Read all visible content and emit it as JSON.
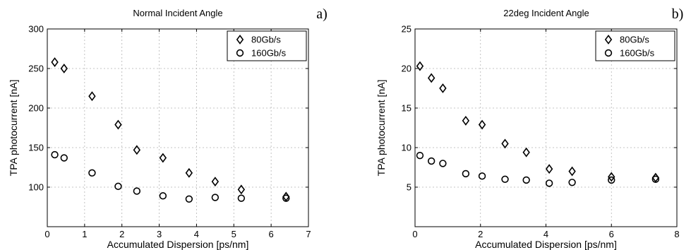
{
  "chart_data": [
    {
      "type": "scatter",
      "panel_label": "a)",
      "title": "Normal Incident Angle",
      "xlabel": "Accumulated Dispersion [ps/nm]",
      "ylabel": "TPA photocurrent [nA]",
      "xlim": [
        0,
        7
      ],
      "ylim": [
        50,
        300
      ],
      "xticks": [
        0,
        1,
        2,
        3,
        4,
        5,
        6,
        7
      ],
      "yticks": [
        100,
        150,
        200,
        250,
        300
      ],
      "grid": true,
      "legend_position": "top-right",
      "series": [
        {
          "name": "80Gb/s",
          "marker": "diamond",
          "x": [
            0.2,
            0.45,
            1.2,
            1.9,
            2.4,
            3.1,
            3.8,
            4.5,
            5.2,
            6.4
          ],
          "y": [
            258,
            250,
            215,
            179,
            147,
            137,
            118,
            107,
            97,
            88
          ]
        },
        {
          "name": "160Gb/s",
          "marker": "circle",
          "x": [
            0.2,
            0.45,
            1.2,
            1.9,
            2.4,
            3.1,
            3.8,
            4.5,
            5.2,
            6.4
          ],
          "y": [
            141,
            137,
            118,
            101,
            95,
            89,
            85,
            87,
            86,
            86
          ]
        }
      ]
    },
    {
      "type": "scatter",
      "panel_label": "b)",
      "title": "22deg Incident Angle",
      "xlabel": "Accumulated Dispersion [ps/nm]",
      "ylabel": "TPA photocurrent [nA]",
      "xlim": [
        0,
        8
      ],
      "ylim": [
        0,
        25
      ],
      "xticks": [
        0,
        2,
        4,
        6,
        8
      ],
      "yticks": [
        5,
        10,
        15,
        20,
        25
      ],
      "grid": true,
      "legend_position": "top-right",
      "series": [
        {
          "name": "80Gb/s",
          "marker": "diamond",
          "x": [
            0.15,
            0.5,
            0.85,
            1.55,
            2.05,
            2.75,
            3.4,
            4.1,
            4.8,
            6.0,
            7.35
          ],
          "y": [
            20.3,
            18.8,
            17.5,
            13.4,
            12.9,
            10.5,
            9.4,
            7.3,
            7.0,
            6.3,
            6.2
          ]
        },
        {
          "name": "160Gb/s",
          "marker": "circle",
          "x": [
            0.15,
            0.5,
            0.85,
            1.55,
            2.05,
            2.75,
            3.4,
            4.1,
            4.8,
            6.0,
            7.35
          ],
          "y": [
            9.0,
            8.3,
            8.0,
            6.7,
            6.4,
            6.0,
            5.9,
            5.5,
            5.6,
            5.9,
            6.0
          ]
        }
      ]
    }
  ]
}
